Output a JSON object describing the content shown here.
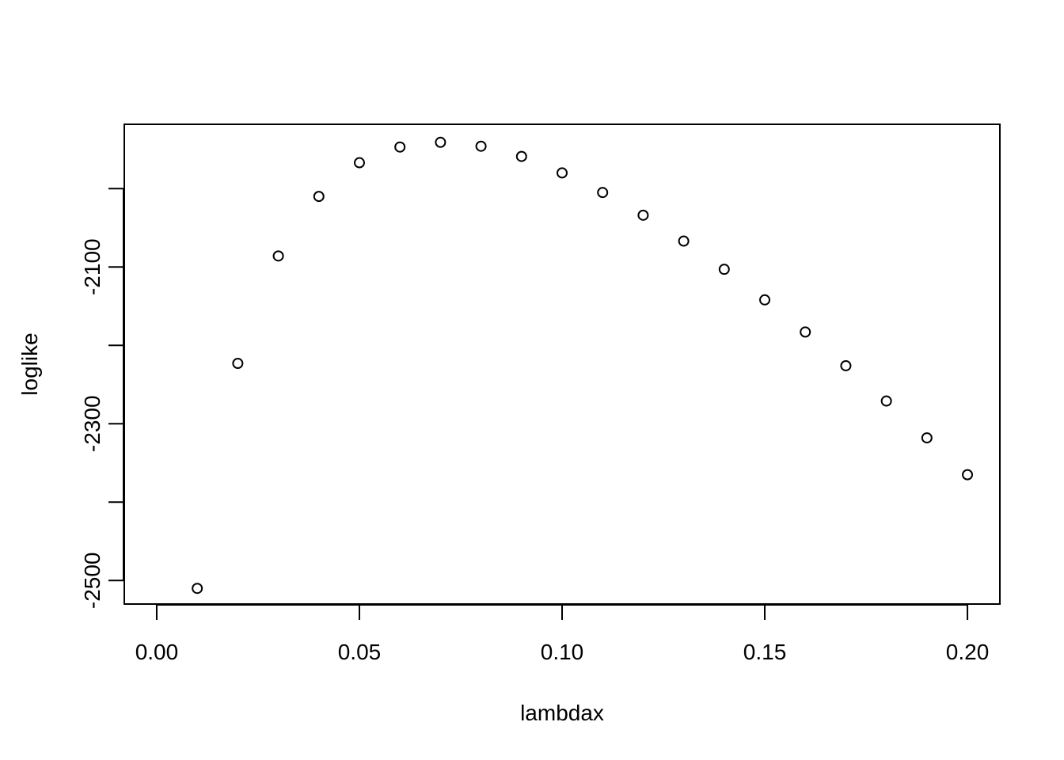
{
  "chart_data": {
    "type": "scatter",
    "title": "",
    "xlabel": "lambdax",
    "ylabel": "loglike",
    "xlim": [
      -0.008,
      0.208
    ],
    "ylim": [
      -2530,
      -1918
    ],
    "x_ticks": [
      0.0,
      0.05,
      0.1,
      0.15,
      0.2
    ],
    "x_tick_labels": [
      "0.00",
      "0.05",
      "0.10",
      "0.15",
      "0.20"
    ],
    "y_ticks": [
      -2500,
      -2400,
      -2300,
      -2200,
      -2100,
      -2000
    ],
    "y_tick_labels": [
      "-2500",
      "",
      "-2300",
      "",
      "-2100",
      ""
    ],
    "grid": false,
    "marker": "open-circle",
    "x": [
      0.01,
      0.02,
      0.03,
      0.04,
      0.05,
      0.06,
      0.07,
      0.08,
      0.09,
      0.1,
      0.11,
      0.12,
      0.13,
      0.14,
      0.15,
      0.16,
      0.17,
      0.18,
      0.19,
      0.2
    ],
    "y": [
      -2510,
      -2223,
      -2086,
      -2010,
      -1967,
      -1947,
      -1941,
      -1946,
      -1959,
      -1980,
      -2005,
      -2034,
      -2067,
      -2103,
      -2142,
      -2183,
      -2226,
      -2271,
      -2318,
      -2365
    ]
  }
}
